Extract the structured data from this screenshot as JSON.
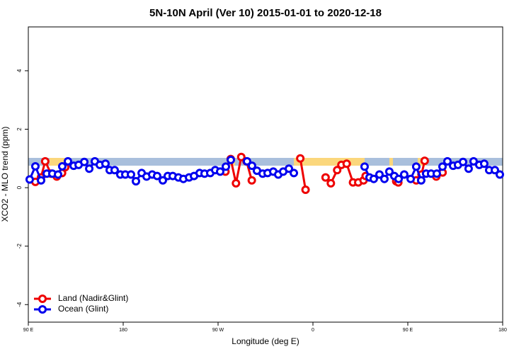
{
  "chart_data": {
    "type": "line",
    "title": "5N-10N April (Ver 10)   2015-01-01 to 2020-12-18",
    "x_label": "Longitude (deg E)",
    "y_label": "XCO2 - MLO trend (ppm)",
    "xlim": [
      90,
      540
    ],
    "xticks": [
      {
        "value": 90,
        "label": "90 E"
      },
      {
        "value": 180,
        "label": "180"
      },
      {
        "value": 270,
        "label": "90 W"
      },
      {
        "value": 360,
        "label": "0"
      },
      {
        "value": 450,
        "label": "90 E"
      },
      {
        "value": 540,
        "label": "180"
      }
    ],
    "ylim": [
      -4.6,
      5.5
    ],
    "yticks": [
      -4,
      -2,
      0,
      2,
      4
    ],
    "legend": "bottom left",
    "series": [
      {
        "name": "Land (Nadir&Glint)",
        "color": "#ee0000",
        "x": [
          96.7,
          102,
          106,
          111.5,
          117,
          122,
          125,
          200,
          277,
          282,
          287,
          292,
          297,
          302,
          330,
          348,
          353,
          370,
          372,
          377,
          383,
          387,
          392,
          398,
          403,
          408,
          410,
          420,
          439,
          441,
          450,
          458,
          463,
          466,
          470,
          477,
          483
        ],
        "values": [
          0.2,
          0.35,
          0.9,
          0.48,
          0.38,
          0.5,
          0.7,
          null,
          0.55,
          0.98,
          0.15,
          1.05,
          0.9,
          0.25,
          null,
          1.0,
          -0.07,
          null,
          0.35,
          0.15,
          0.6,
          0.78,
          0.82,
          0.18,
          0.18,
          0.25,
          0.4,
          null,
          0.22,
          0.18,
          null,
          0.25,
          0.45,
          0.92,
          null,
          0.38,
          0.52
        ]
      },
      {
        "name": "Ocean (Glint)",
        "color": "#0000ee",
        "x": [
          91.3,
          96.7,
          102.1,
          107.5,
          112.8,
          118.2,
          122.2,
          127.6,
          133,
          137.7,
          143.1,
          147.8,
          153.1,
          157.8,
          163.2,
          167.2,
          171.9,
          177.3,
          182,
          187.4,
          192.1,
          197.5,
          202.2,
          207.5,
          212.2,
          217.6,
          222.3,
          227,
          232.4,
          237.1,
          242.5,
          247.2,
          252.5,
          257.2,
          262.6,
          267.3,
          272,
          277.4,
          282.1,
          290,
          297.5,
          302.2,
          306.9,
          312.3,
          317,
          322.4,
          327.1,
          331.8,
          337.2,
          341.9,
          400,
          409,
          413.7,
          417.7,
          423.1,
          427.8,
          432.5,
          437.2,
          441.3,
          446.6,
          452.7,
          458,
          462.7,
          467.4,
          472.1,
          477.5,
          482.9,
          487.6,
          493,
          497.6,
          502.4,
          507.7,
          512.4,
          517.8,
          522.5,
          527.2,
          532.6,
          537.3
        ],
        "values": [
          0.28,
          0.73,
          0.25,
          0.48,
          0.48,
          0.45,
          0.73,
          0.9,
          0.75,
          0.78,
          0.88,
          0.65,
          0.9,
          0.78,
          0.82,
          0.6,
          0.6,
          0.45,
          0.45,
          0.45,
          0.22,
          0.5,
          0.38,
          0.45,
          0.4,
          0.25,
          0.4,
          0.4,
          0.35,
          0.3,
          0.35,
          0.4,
          0.5,
          0.48,
          0.5,
          0.6,
          0.55,
          0.72,
          0.95,
          null,
          0.9,
          0.75,
          0.58,
          0.48,
          0.5,
          0.55,
          0.45,
          0.55,
          0.65,
          0.5,
          null,
          0.72,
          0.35,
          0.3,
          0.45,
          0.3,
          0.55,
          0.4,
          0.3,
          0.45,
          0.3,
          0.72,
          0.25,
          0.48,
          0.48,
          0.48,
          0.72,
          0.9,
          0.75,
          0.78,
          0.88,
          0.65,
          0.9,
          0.78,
          0.82,
          0.6,
          0.6,
          0.45
        ]
      }
    ]
  }
}
